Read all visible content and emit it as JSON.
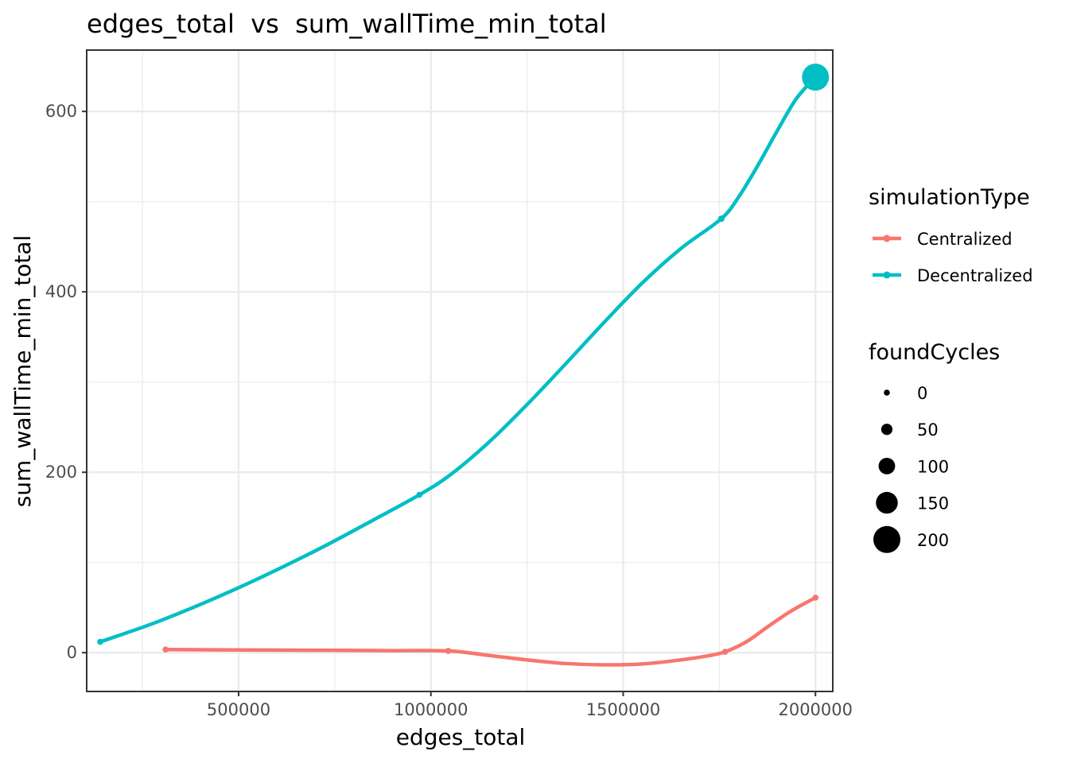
{
  "chart_data": {
    "type": "line",
    "title": "edges_total  vs  sum_wallTime_min_total",
    "xlabel": "edges_total",
    "ylabel": "sum_wallTime_min_total",
    "xlim": [
      105000,
      2045000
    ],
    "ylim": [
      -43,
      668
    ],
    "x_major_ticks": [
      500000,
      1000000,
      1500000,
      2000000
    ],
    "x_minor_ticks": [
      250000,
      750000,
      1250000,
      1750000
    ],
    "y_major_ticks": [
      0,
      200,
      400,
      600
    ],
    "y_minor_ticks": [
      100,
      300,
      500
    ],
    "x_tick_labels": [
      "500000",
      "1000000",
      "1500000",
      "2000000"
    ],
    "y_tick_labels": [
      "0",
      "200",
      "400",
      "600"
    ],
    "grid": true,
    "legend_position": "right",
    "series": [
      {
        "name": "Centralized",
        "color": "#F8766D",
        "points": [
          {
            "x": 310000,
            "y": 3.5,
            "foundCycles": 0
          },
          {
            "x": 1045000,
            "y": 2,
            "foundCycles": 0
          },
          {
            "x": 1765000,
            "y": 1,
            "foundCycles": 0
          },
          {
            "x": 2000000,
            "y": 61,
            "foundCycles": 0
          }
        ],
        "smooth_curve": [
          [
            310000,
            3.5
          ],
          [
            500000,
            3
          ],
          [
            700000,
            2.7
          ],
          [
            900000,
            2.3
          ],
          [
            1045000,
            2
          ],
          [
            1150000,
            -3
          ],
          [
            1250000,
            -8
          ],
          [
            1350000,
            -12
          ],
          [
            1450000,
            -13.5
          ],
          [
            1550000,
            -12.5
          ],
          [
            1650000,
            -8
          ],
          [
            1720000,
            -3.5
          ],
          [
            1765000,
            1
          ],
          [
            1820000,
            12
          ],
          [
            1880000,
            30
          ],
          [
            1940000,
            47
          ],
          [
            2000000,
            61
          ]
        ]
      },
      {
        "name": "Decentralized",
        "color": "#00BFC4",
        "points": [
          {
            "x": 140000,
            "y": 12,
            "foundCycles": 0
          },
          {
            "x": 970000,
            "y": 175,
            "foundCycles": 0
          },
          {
            "x": 1755000,
            "y": 481,
            "foundCycles": 5
          },
          {
            "x": 2000000,
            "y": 638,
            "foundCycles": 200
          }
        ],
        "smooth_curve": [
          [
            140000,
            12
          ],
          [
            300000,
            36
          ],
          [
            500000,
            72
          ],
          [
            700000,
            113
          ],
          [
            850000,
            147
          ],
          [
            970000,
            175
          ],
          [
            1050000,
            197
          ],
          [
            1150000,
            233
          ],
          [
            1250000,
            275
          ],
          [
            1350000,
            320
          ],
          [
            1450000,
            366
          ],
          [
            1550000,
            410
          ],
          [
            1650000,
            448
          ],
          [
            1755000,
            481
          ],
          [
            1800000,
            505
          ],
          [
            1850000,
            540
          ],
          [
            1900000,
            578
          ],
          [
            1950000,
            614
          ],
          [
            2000000,
            638
          ]
        ]
      }
    ],
    "legend": {
      "color_title": "simulationType",
      "color_entries": [
        {
          "label": "Centralized",
          "color": "#F8766D"
        },
        {
          "label": "Decentralized",
          "color": "#00BFC4"
        }
      ],
      "size_title": "foundCycles",
      "size_entries": [
        {
          "label": "0",
          "value": 0
        },
        {
          "label": "50",
          "value": 50
        },
        {
          "label": "100",
          "value": 100
        },
        {
          "label": "150",
          "value": 150
        },
        {
          "label": "200",
          "value": 200
        }
      ]
    }
  }
}
